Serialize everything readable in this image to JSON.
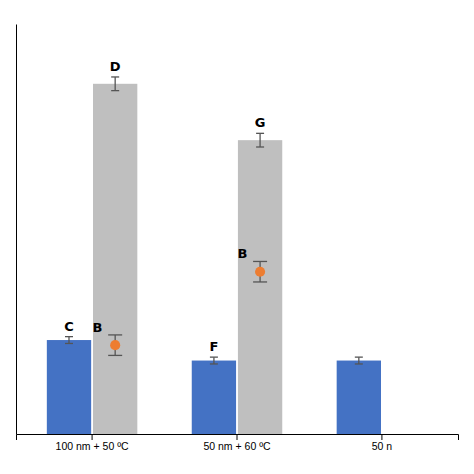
{
  "chart_data": {
    "type": "bar",
    "categories": [
      "100 nm + 50 ºC",
      "50 nm + 60 ºC",
      "50 n"
    ],
    "series": [
      {
        "type": "bar",
        "color": "#4472C4",
        "values": [
          55,
          43,
          43
        ],
        "errors": [
          2,
          2,
          2
        ],
        "labels": [
          "C",
          "F",
          null
        ]
      },
      {
        "type": "bar",
        "color": "#BFBFBF",
        "values": [
          205,
          172,
          null
        ],
        "errors": [
          4,
          4,
          null
        ],
        "labels": [
          "D",
          "G",
          null
        ]
      },
      {
        "type": "scatter",
        "marker": "circle",
        "color": "#ED7D31",
        "values": [
          52,
          95,
          null
        ],
        "errors": [
          6,
          6,
          null
        ],
        "labels": [
          "B",
          "B",
          null
        ]
      }
    ],
    "error_color": "#555555",
    "ylim": [
      0,
      240
    ],
    "tick_labels": "x",
    "grid": false
  }
}
